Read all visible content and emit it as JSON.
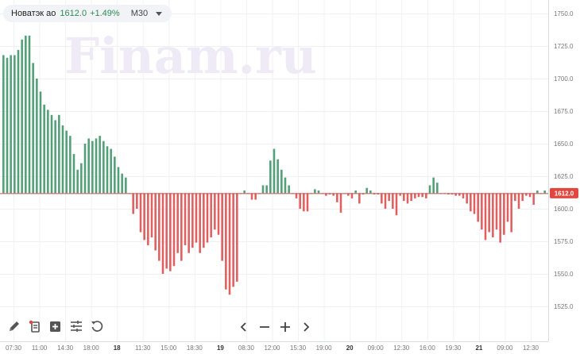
{
  "legend": {
    "symbol": "Новатэк ао",
    "price": "1612.0",
    "change": "+1.49%",
    "timeframe": "M30"
  },
  "watermark": "Finam.ru",
  "toolbar": {
    "icons": [
      "pencil-icon",
      "indicator-icon",
      "add-chart-icon",
      "settings-sliders-icon",
      "reset-icon"
    ]
  },
  "navigation": {
    "icons": [
      "scroll-left-icon",
      "zoom-out-icon",
      "zoom-in-icon",
      "scroll-right-icon"
    ]
  },
  "colors": {
    "up": "#52a078",
    "down": "#e06060",
    "baseline": "#c0504d",
    "price_tag": "#e0473f",
    "watermark": "#eeebf6"
  },
  "chart_data": {
    "type": "bar",
    "baseline": 1612.0,
    "current_price_label": "1612.0",
    "ylim": [
      1512,
      1760
    ],
    "y_ticks": [
      "1750.0",
      "1725.0",
      "1700.0",
      "1675.0",
      "1650.0",
      "1625.0",
      "1600.0",
      "1575.0",
      "1550.0",
      "1525.0"
    ],
    "x_ticks": [
      "07:30",
      "11:00",
      "14:30",
      "18:00",
      "18",
      "11:30",
      "15:00",
      "18:30",
      "19",
      "08:30",
      "12:00",
      "15:30",
      "19:00",
      "20",
      "09:00",
      "12:30",
      "16:00",
      "19:30",
      "21",
      "09:00",
      "12:30"
    ],
    "x_ticks_bold": [
      "18",
      "19",
      "20",
      "21"
    ],
    "values": [
      1718,
      1716,
      1718,
      1718,
      1722,
      1730,
      1733,
      1733,
      1712,
      1700,
      1690,
      1680,
      1676,
      1672,
      1668,
      1672,
      1664,
      1660,
      1656,
      1642,
      1630,
      1635,
      1650,
      1654,
      1652,
      1654,
      1656,
      1652,
      1648,
      1646,
      1640,
      1632,
      1627,
      1624,
      1612,
      1596,
      1600,
      1582,
      1576,
      1572,
      1578,
      1568,
      1560,
      1550,
      1554,
      1552,
      1556,
      1566,
      1560,
      1572,
      1566,
      1570,
      1574,
      1566,
      1570,
      1574,
      1578,
      1584,
      1580,
      1560,
      1538,
      1534,
      1540,
      1544,
      1612,
      1614,
      1612,
      1607,
      1607,
      1612,
      1618,
      1618,
      1637,
      1646,
      1638,
      1630,
      1624,
      1618,
      1612,
      1608,
      1600,
      1598,
      1598,
      1612,
      1615,
      1614,
      1612,
      1610,
      1611,
      1610,
      1605,
      1597,
      1612,
      1610,
      1608,
      1614,
      1604,
      1611,
      1616,
      1614,
      1611,
      1611,
      1604,
      1600,
      1606,
      1600,
      1595,
      1610,
      1606,
      1604,
      1606,
      1608,
      1609,
      1609,
      1608,
      1618,
      1624,
      1620,
      1612,
      1612,
      1611,
      1611,
      1610,
      1610,
      1608,
      1604,
      1598,
      1596,
      1590,
      1584,
      1576,
      1582,
      1578,
      1584,
      1574,
      1580,
      1590,
      1582,
      1606,
      1600,
      1606,
      1610,
      1609,
      1603,
      1614,
      1612,
      1614
    ]
  }
}
